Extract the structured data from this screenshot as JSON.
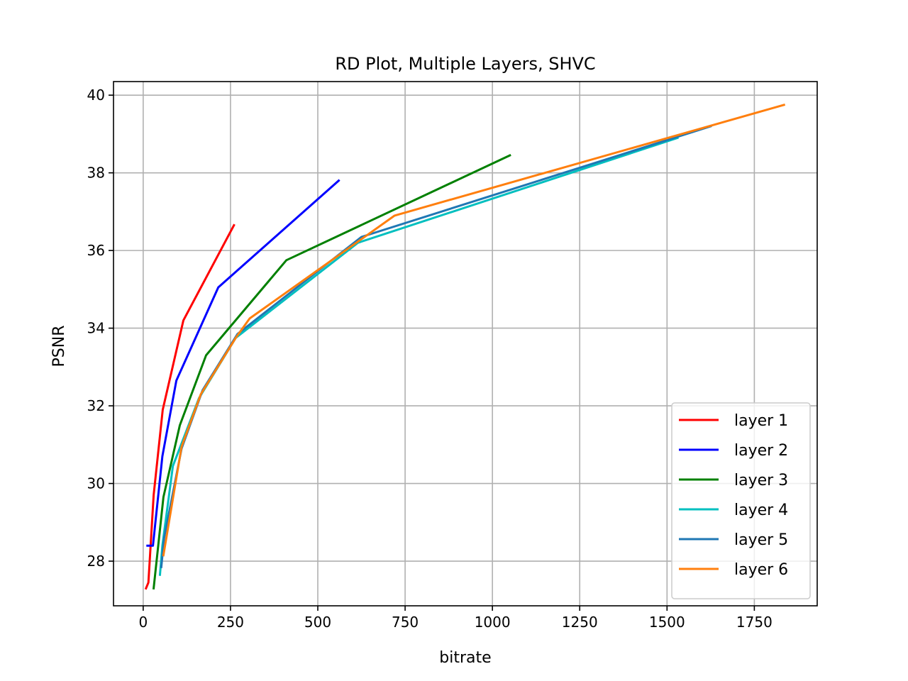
{
  "chart_data": {
    "type": "line",
    "title": "RD Plot, Multiple Layers, SHVC",
    "xlabel": "bitrate",
    "ylabel": "PSNR",
    "xlim": [
      -85,
      1930
    ],
    "ylim": [
      26.85,
      40.35
    ],
    "xticks": [
      0,
      250,
      500,
      750,
      1000,
      1250,
      1500,
      1750
    ],
    "yticks": [
      28,
      30,
      32,
      34,
      36,
      38,
      40
    ],
    "xtick_labels": [
      "0",
      "250",
      "500",
      "750",
      "1000",
      "1250",
      "1500",
      "1750"
    ],
    "ytick_labels": [
      "28",
      "30",
      "32",
      "34",
      "36",
      "38",
      "40"
    ],
    "grid": true,
    "legend_location": "lower-right",
    "series": [
      {
        "name": "layer 1",
        "color": "#ff0000",
        "x": [
          8,
          15,
          30,
          56,
          115,
          260
        ],
        "y": [
          27.3,
          27.45,
          29.7,
          31.9,
          34.2,
          36.65
        ]
      },
      {
        "name": "layer 2",
        "color": "#0000ff",
        "x": [
          12,
          28,
          55,
          95,
          215,
          560
        ],
        "y": [
          28.4,
          28.4,
          30.7,
          32.65,
          35.05,
          37.8
        ]
      },
      {
        "name": "layer 3",
        "color": "#008000",
        "x": [
          30,
          58,
          105,
          180,
          410,
          1050
        ],
        "y": [
          27.3,
          29.65,
          31.5,
          33.3,
          35.75,
          38.45
        ]
      },
      {
        "name": "layer 4",
        "color": "#00bfbf",
        "x": [
          48,
          55,
          85,
          160,
          265,
          615,
          1530
        ],
        "y": [
          27.65,
          28.4,
          30.45,
          32.2,
          33.75,
          36.2,
          38.9
        ]
      },
      {
        "name": "layer 5",
        "color": "#1f77b4",
        "x": [
          52,
          60,
          110,
          170,
          270,
          625,
          1625
        ],
        "y": [
          27.85,
          28.6,
          30.9,
          32.4,
          33.85,
          36.35,
          39.2
        ]
      },
      {
        "name": "layer 6",
        "color": "#ff7f0e",
        "x": [
          58,
          110,
          165,
          265,
          305,
          720,
          1835
        ],
        "y": [
          28.15,
          30.95,
          32.3,
          33.75,
          34.25,
          36.9,
          39.75
        ]
      }
    ]
  }
}
